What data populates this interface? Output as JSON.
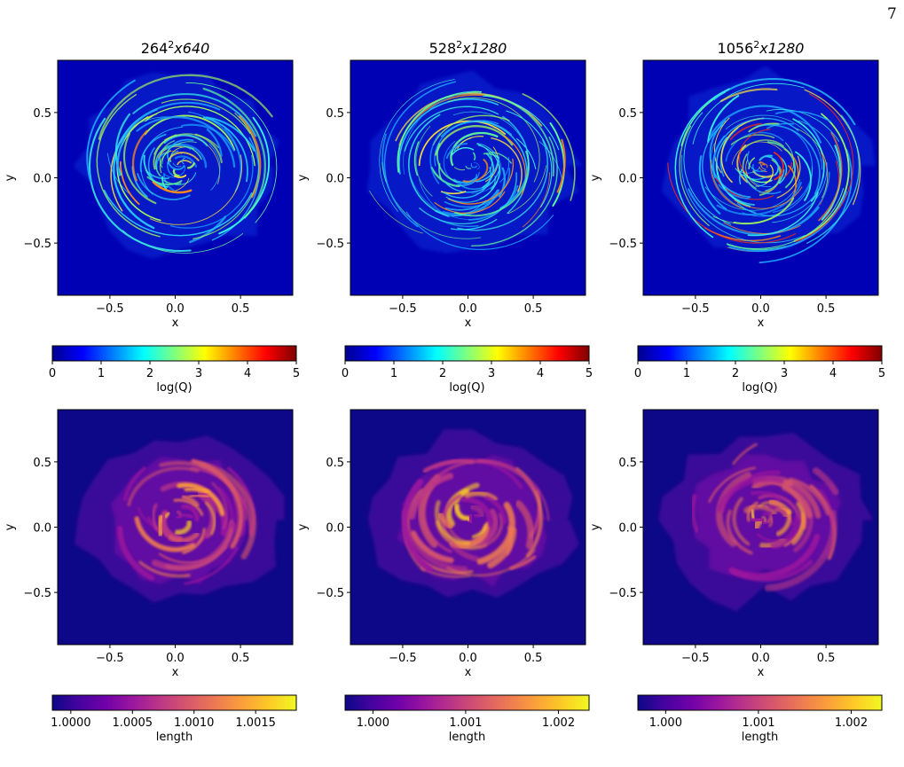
{
  "page_number": "7",
  "chart_data": [
    {
      "type": "heatmap",
      "title": "264²x640",
      "title_base": "264",
      "title_exp": "2",
      "title_rest": "x640",
      "xlabel": "x",
      "ylabel": "y",
      "xlim": [
        -0.9,
        0.9
      ],
      "ylim": [
        -0.9,
        0.9
      ],
      "xticks": [
        -0.5,
        0.0,
        0.5
      ],
      "xtick_labels": [
        "−0.5",
        "0.0",
        "0.5"
      ],
      "yticks": [
        0.5,
        0.0,
        -0.5
      ],
      "ytick_labels": [
        "0.5",
        "0.0",
        "−0.5"
      ],
      "colormap": "jet",
      "colorbar": {
        "label": "log(Q)",
        "range": [
          0,
          5
        ],
        "ticks": [
          0,
          1,
          2,
          3,
          4,
          5
        ],
        "tick_labels": [
          "0",
          "1",
          "2",
          "3",
          "4",
          "5"
        ]
      },
      "intensity": 0.45
    },
    {
      "type": "heatmap",
      "title": "528²x1280",
      "title_base": "528",
      "title_exp": "2",
      "title_rest": "x1280",
      "xlabel": "x",
      "ylabel": "y",
      "xlim": [
        -0.9,
        0.9
      ],
      "ylim": [
        -0.9,
        0.9
      ],
      "xticks": [
        -0.5,
        0.0,
        0.5
      ],
      "xtick_labels": [
        "−0.5",
        "0.0",
        "0.5"
      ],
      "yticks": [
        0.5,
        0.0,
        -0.5
      ],
      "ytick_labels": [
        "0.5",
        "0.0",
        "−0.5"
      ],
      "colormap": "jet",
      "colorbar": {
        "label": "log(Q)",
        "range": [
          0,
          5
        ],
        "ticks": [
          0,
          1,
          2,
          3,
          4,
          5
        ],
        "tick_labels": [
          "0",
          "1",
          "2",
          "3",
          "4",
          "5"
        ]
      },
      "intensity": 0.55
    },
    {
      "type": "heatmap",
      "title": "1056²x1280",
      "title_base": "1056",
      "title_exp": "2",
      "title_rest": "x1280",
      "xlabel": "x",
      "ylabel": "y",
      "xlim": [
        -0.9,
        0.9
      ],
      "ylim": [
        -0.9,
        0.9
      ],
      "xticks": [
        -0.5,
        0.0,
        0.5
      ],
      "xtick_labels": [
        "−0.5",
        "0.0",
        "0.5"
      ],
      "yticks": [
        0.5,
        0.0,
        -0.5
      ],
      "ytick_labels": [
        "0.5",
        "0.0",
        "−0.5"
      ],
      "colormap": "jet",
      "colorbar": {
        "label": "log(Q)",
        "range": [
          0,
          5
        ],
        "ticks": [
          0,
          1,
          2,
          3,
          4,
          5
        ],
        "tick_labels": [
          "0",
          "1",
          "2",
          "3",
          "4",
          "5"
        ]
      },
      "intensity": 0.7
    },
    {
      "type": "heatmap",
      "title": "",
      "xlabel": "x",
      "ylabel": "y",
      "xlim": [
        -0.9,
        0.9
      ],
      "ylim": [
        -0.9,
        0.9
      ],
      "xticks": [
        -0.5,
        0.0,
        0.5
      ],
      "xtick_labels": [
        "−0.5",
        "0.0",
        "0.5"
      ],
      "yticks": [
        0.5,
        0.0,
        -0.5
      ],
      "ytick_labels": [
        "0.5",
        "0.0",
        "−0.5"
      ],
      "colormap": "plasma",
      "colorbar": {
        "label": "length",
        "range": [
          0.99985,
          1.00183
        ],
        "ticks": [
          1.0,
          1.0005,
          1.001,
          1.0015
        ],
        "tick_labels": [
          "1.0000",
          "1.0005",
          "1.0010",
          "1.0015"
        ]
      }
    },
    {
      "type": "heatmap",
      "title": "",
      "xlabel": "x",
      "ylabel": "y",
      "xlim": [
        -0.9,
        0.9
      ],
      "ylim": [
        -0.9,
        0.9
      ],
      "xticks": [
        -0.5,
        0.0,
        0.5
      ],
      "xtick_labels": [
        "−0.5",
        "0.0",
        "0.5"
      ],
      "yticks": [
        0.5,
        0.0,
        -0.5
      ],
      "ytick_labels": [
        "0.5",
        "0.0",
        "−0.5"
      ],
      "colormap": "plasma",
      "colorbar": {
        "label": "length",
        "range": [
          0.9997,
          1.00233
        ],
        "ticks": [
          1.0,
          1.001,
          1.002
        ],
        "tick_labels": [
          "1.000",
          "1.001",
          "1.002"
        ]
      }
    },
    {
      "type": "heatmap",
      "title": "",
      "xlabel": "x",
      "ylabel": "y",
      "xlim": [
        -0.9,
        0.9
      ],
      "ylim": [
        -0.9,
        0.9
      ],
      "xticks": [
        -0.5,
        0.0,
        0.5
      ],
      "xtick_labels": [
        "−0.5",
        "0.0",
        "0.5"
      ],
      "yticks": [
        0.5,
        0.0,
        -0.5
      ],
      "ytick_labels": [
        "0.5",
        "0.0",
        "−0.5"
      ],
      "colormap": "plasma",
      "colorbar": {
        "label": "length",
        "range": [
          0.9997,
          1.00233
        ],
        "ticks": [
          1.0,
          1.001,
          1.002
        ],
        "tick_labels": [
          "1.000",
          "1.001",
          "1.002"
        ]
      }
    }
  ],
  "colors": {
    "jet_background": "#0000b4",
    "plasma_background": "#0d0887",
    "jet_stops": [
      "#00008f",
      "#0000ff",
      "#007fff",
      "#00ffff",
      "#7fff7f",
      "#ffff00",
      "#ff7f00",
      "#ff0000",
      "#7f0000"
    ],
    "plasma_stops": [
      "#0d0887",
      "#46039f",
      "#7201a8",
      "#9c179e",
      "#bd3786",
      "#d8576b",
      "#ed7953",
      "#fb9f3a",
      "#fdca26",
      "#f0f921"
    ]
  }
}
